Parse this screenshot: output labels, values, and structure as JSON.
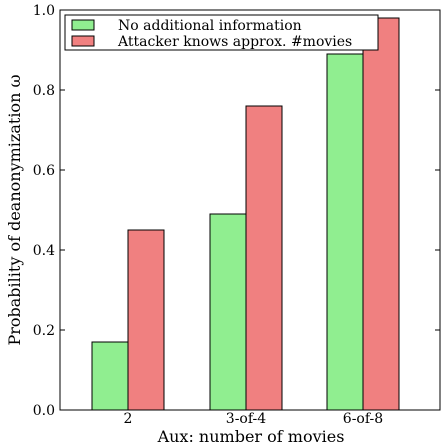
{
  "chart_data": {
    "type": "bar",
    "title": "",
    "xlabel": "Aux: number of movies",
    "ylabel": "Probability of deanonymization ω",
    "ylim": [
      0.0,
      1.0
    ],
    "yticks": [
      "0.0",
      "0.2",
      "0.4",
      "0.6",
      "0.8",
      "1.0"
    ],
    "categories": [
      "2",
      "3-of-4",
      "6-of-8"
    ],
    "series": [
      {
        "name": "No additional information",
        "values": [
          0.17,
          0.49,
          0.89
        ],
        "color": "#90ee90"
      },
      {
        "name": "Attacker knows approx. #movies",
        "values": [
          0.45,
          0.76,
          0.98
        ],
        "color": "#f08080"
      }
    ],
    "grid": false,
    "legend_position": "top"
  }
}
